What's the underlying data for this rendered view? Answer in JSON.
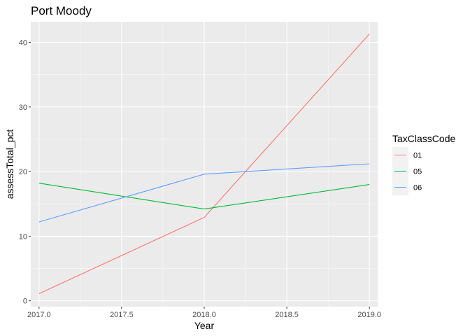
{
  "chart_data": {
    "type": "line",
    "title": "Port Moody",
    "xlabel": "Year",
    "ylabel": "assessTotal_pct",
    "xlim": [
      2016.95,
      2019.05
    ],
    "ylim": [
      -0.9,
      43.2
    ],
    "x_ticks": [
      2017.0,
      2017.5,
      2018.0,
      2018.5,
      2019.0
    ],
    "x_tick_labels": [
      "2017.0",
      "2017.5",
      "2018.0",
      "2018.5",
      "2019.0"
    ],
    "y_ticks": [
      0,
      10,
      20,
      30,
      40
    ],
    "y_tick_labels": [
      "0",
      "10",
      "20",
      "30",
      "40"
    ],
    "grid": true,
    "legend": {
      "title": "TaxClassCode",
      "position": "right"
    },
    "series": [
      {
        "name": "01",
        "color": "#F8766D",
        "x": [
          2017,
          2018,
          2019
        ],
        "y": [
          1.1,
          12.9,
          41.3
        ]
      },
      {
        "name": "05",
        "color": "#00BA38",
        "x": [
          2017,
          2018,
          2019
        ],
        "y": [
          18.2,
          14.2,
          18.0
        ]
      },
      {
        "name": "06",
        "color": "#619CFF",
        "x": [
          2017,
          2018,
          2019
        ],
        "y": [
          12.2,
          19.6,
          21.2
        ]
      }
    ]
  },
  "colors": {
    "panel_background": "#EBEBEB",
    "grid_major": "#FFFFFF",
    "legend_key_background": "#F2F2F2"
  }
}
